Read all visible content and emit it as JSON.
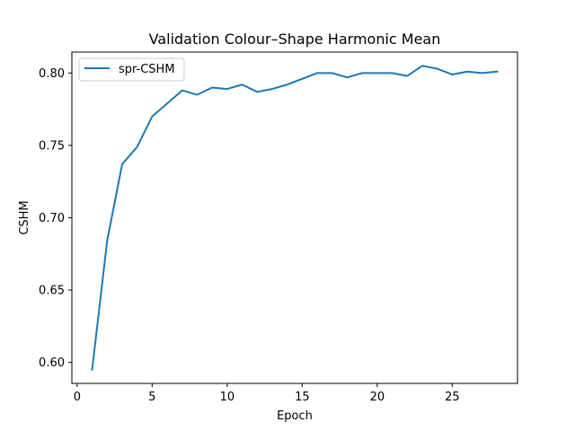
{
  "chart_data": {
    "type": "line",
    "title": "Validation Colour–Shape Harmonic Mean",
    "xlabel": "Epoch",
    "ylabel": "CSHM",
    "xlim": [
      -0.35,
      29.35
    ],
    "ylim": [
      0.5855,
      0.8145
    ],
    "xticks": [
      0,
      5,
      10,
      15,
      20,
      25
    ],
    "xtick_labels": [
      "0",
      "5",
      "10",
      "15",
      "20",
      "25"
    ],
    "yticks": [
      0.6,
      0.65,
      0.7,
      0.75,
      0.8
    ],
    "ytick_labels": [
      "0.60",
      "0.65",
      "0.70",
      "0.75",
      "0.80"
    ],
    "grid": false,
    "legend_position": "top-left",
    "series": [
      {
        "name": "spr-CSHM",
        "color": "#1f77b4",
        "x": [
          1,
          2,
          3,
          4,
          5,
          6,
          7,
          8,
          9,
          10,
          11,
          12,
          13,
          14,
          15,
          16,
          17,
          18,
          19,
          20,
          21,
          22,
          23,
          24,
          25,
          26,
          27,
          28
        ],
        "y": [
          0.595,
          0.684,
          0.737,
          0.749,
          0.77,
          0.779,
          0.788,
          0.785,
          0.79,
          0.789,
          0.792,
          0.787,
          0.789,
          0.792,
          0.796,
          0.8,
          0.8,
          0.797,
          0.8,
          0.8,
          0.8,
          0.798,
          0.805,
          0.803,
          0.799,
          0.801,
          0.8,
          0.801
        ]
      }
    ]
  }
}
